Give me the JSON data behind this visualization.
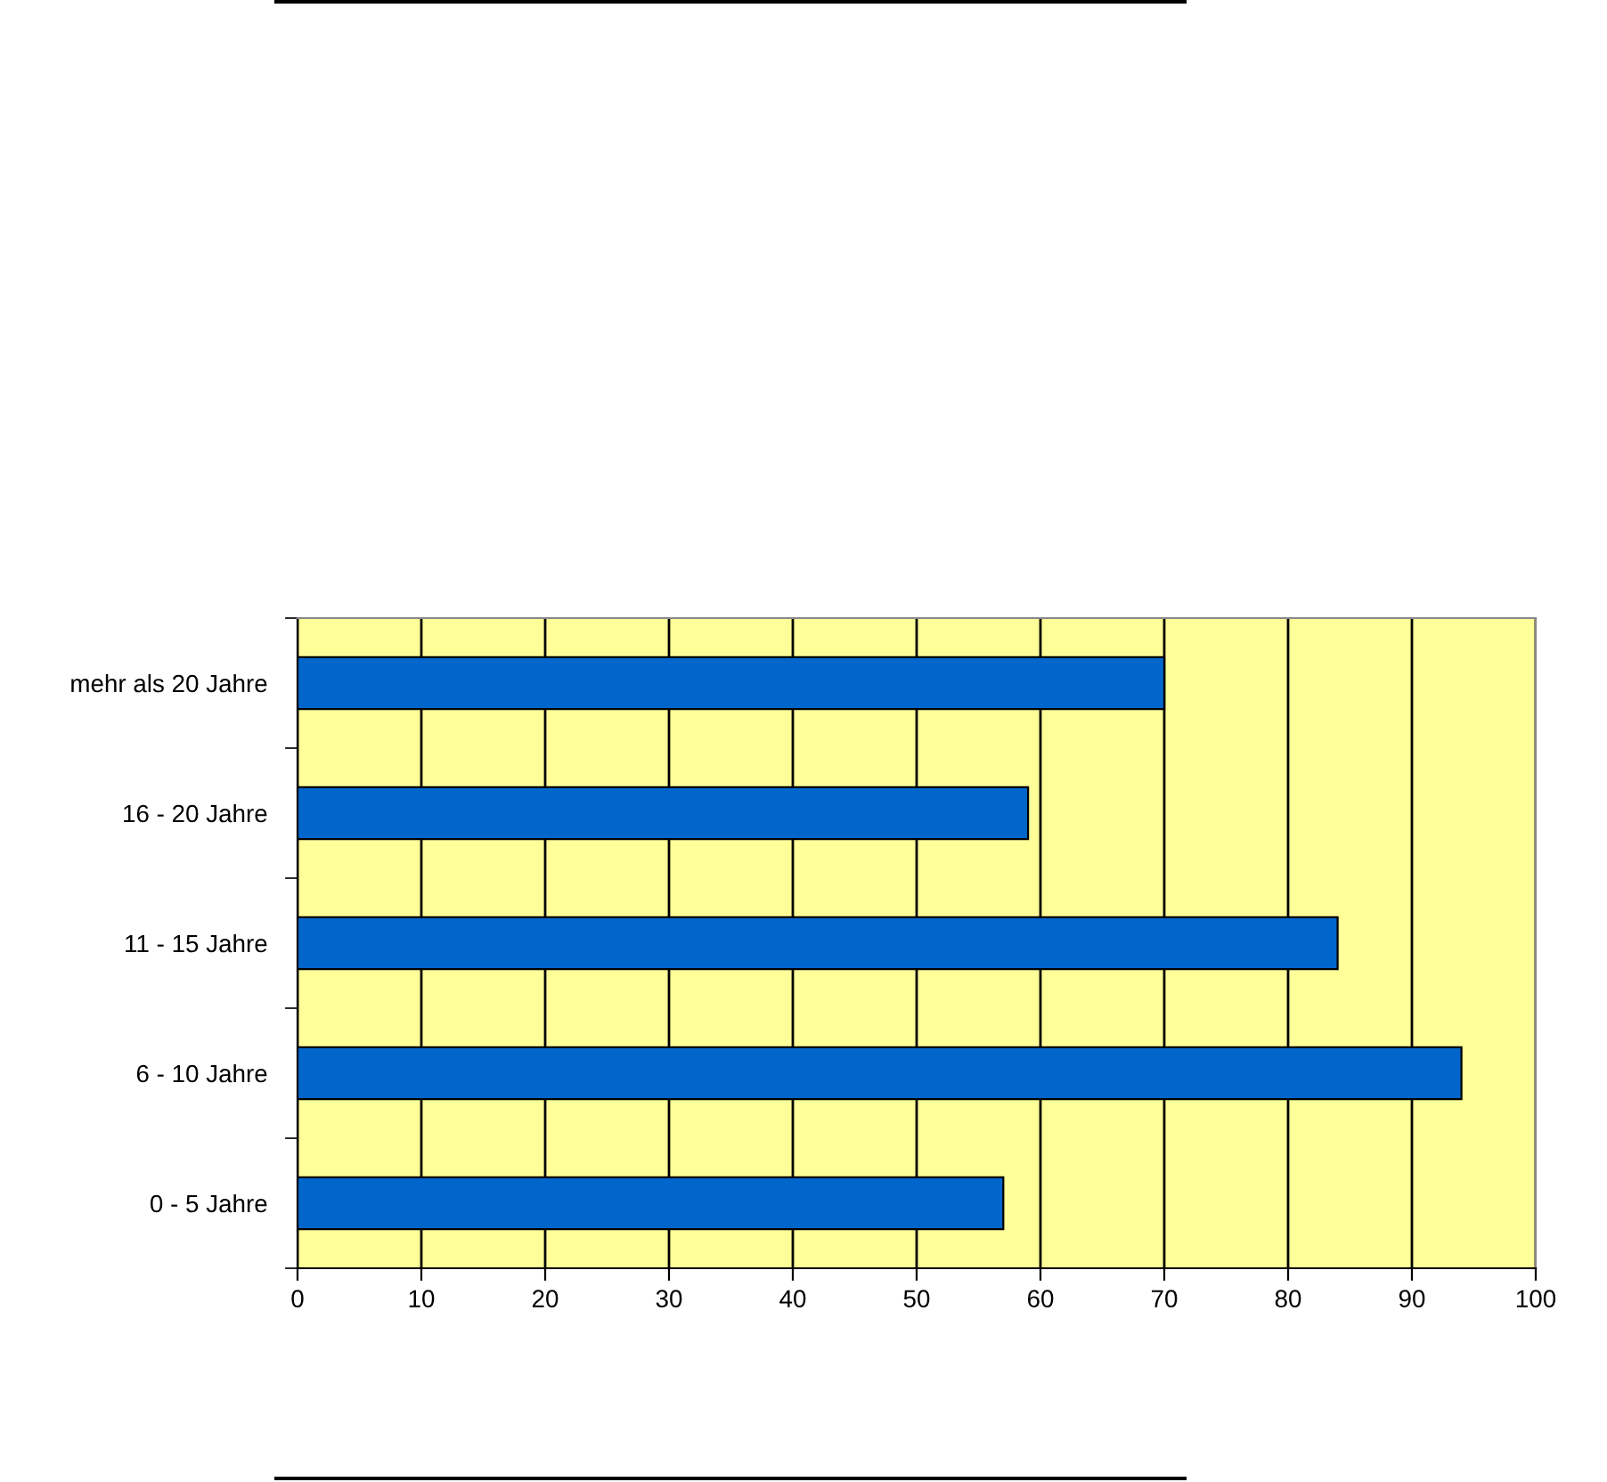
{
  "chart_data": {
    "type": "bar",
    "orientation": "horizontal",
    "categories": [
      "mehr als 20 Jahre",
      "16 - 20 Jahre",
      "11 - 15 Jahre",
      "6 - 10 Jahre",
      "0 - 5 Jahre"
    ],
    "values": [
      70,
      59,
      84,
      94,
      57
    ],
    "color": "#0066cc",
    "xlim": [
      0,
      100
    ],
    "xticks": [
      0,
      10,
      20,
      30,
      40,
      50,
      60,
      70,
      80,
      90,
      100
    ],
    "grid": "x"
  }
}
